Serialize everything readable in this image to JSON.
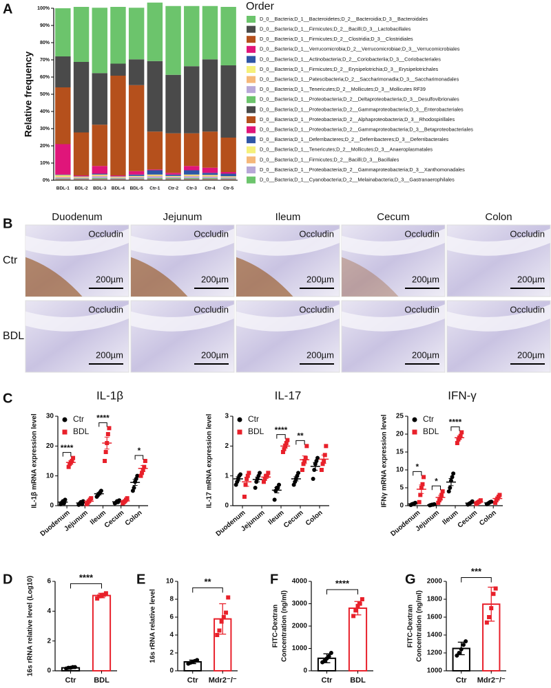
{
  "histology": {
    "panel": "B",
    "regions": [
      "Duodenum",
      "Jejunum",
      "Ileum",
      "Cecum",
      "Colon"
    ],
    "conditions": [
      "Ctr",
      "BDL"
    ],
    "stain": "Occludin",
    "scale_bar": "200µm"
  },
  "chart_data": [
    {
      "type": "stacked",
      "panel": "A",
      "ylabel": "Relative frequency",
      "legend_title": "Order",
      "categories": [
        "BDL-1",
        "BDL-2",
        "BDL-3",
        "BDL-4",
        "BDL-5",
        "Ctr-1",
        "Ctr-2",
        "Ctr-3",
        "Ctr-4",
        "Ctr-5"
      ],
      "ylim": [
        0,
        100
      ],
      "yticks": [
        {
          "value": 0,
          "label": "0%"
        },
        {
          "value": 10,
          "label": "10%"
        },
        {
          "value": 20,
          "label": "20%"
        },
        {
          "value": 30,
          "label": "30%"
        },
        {
          "value": 40,
          "label": "40%"
        },
        {
          "value": 50,
          "label": "50%"
        },
        {
          "value": 60,
          "label": "60%"
        },
        {
          "value": 70,
          "label": "70%"
        },
        {
          "value": 80,
          "label": "80%"
        },
        {
          "value": 90,
          "label": "90%"
        },
        {
          "value": 100,
          "label": "100%"
        }
      ],
      "series": [
        {
          "name": "D_0__Bacteria;D_1__Bacteroidetes;D_2__Bacteroidia;D_3__Bacteroidales",
          "color": "#6cc46c",
          "values": [
            28,
            32,
            38,
            33,
            30,
            34,
            40,
            35,
            31,
            34
          ]
        },
        {
          "name": "D_0__Bacteria;D_1__Firmicutes;D_2__Bacilli;D_3__Lactobacillales",
          "color": "#4a4a4a",
          "values": [
            18,
            41,
            30,
            7,
            15,
            41,
            34,
            39,
            42,
            42
          ]
        },
        {
          "name": "D_0__Bacteria;D_1__Firmicutes;D_2__Clostridia;D_3__Clostridiales",
          "color": "#b5501c",
          "values": [
            33,
            25,
            24,
            58,
            50,
            22,
            23,
            19,
            21,
            20
          ]
        },
        {
          "name": "D_0__Bacteria;D_1__Verrucomicrobia;D_2__Verrucomicrobiae;D_3__Verrucomicrobiales",
          "color": "#e0157a",
          "values": [
            17.7,
            0.5,
            4.5,
            0.5,
            2,
            0.5,
            1,
            2.5,
            3,
            1
          ]
        },
        {
          "name": "D_0__Bacteria;D_1__Actinobacteria;D_2__Coriobacteriia;D_3__Coriobacteriales",
          "color": "#2e56a6",
          "values": [
            0.3,
            0.2,
            0.5,
            0.2,
            0.8,
            2.5,
            0.8,
            2.5,
            1.2,
            1.5
          ]
        },
        {
          "name": "D_0__Bacteria;D_1__Firmicutes;D_2__Erysipelotrichia;D_3__Erysipelotrichales",
          "color": "#f5f07a",
          "values": [
            0.8,
            0.3,
            0.5,
            0.3,
            0.4,
            0.5,
            0.4,
            0.5,
            0.5,
            0.4
          ]
        },
        {
          "name": "D_0__Bacteria;D_1__Patescibacteria;D_2__Saccharimonadia;D_3__Saccharimonadales",
          "color": "#f5b87a",
          "values": [
            0.5,
            0.3,
            0.5,
            0.3,
            0.3,
            0.5,
            0.3,
            0.5,
            0.5,
            0.3
          ]
        },
        {
          "name": "D_0__Bacteria;D_1__Tenericutes;D_2__Mollicutes;D_3__Mollicutes RF39",
          "color": "#b8a8d8",
          "values": [
            0.6,
            0.4,
            1,
            0.4,
            0.7,
            1,
            0.6,
            1,
            0.8,
            0.5
          ]
        },
        {
          "name": "D_0__Bacteria;D_1__Proteobacteria;D_2__Deltaproteobacteria;D_3__Desulfovibrionales",
          "color": "#6cc46c",
          "values": [
            0.3,
            0.3,
            0.5,
            0.3,
            0.3,
            0.5,
            0.4,
            0.5,
            0.5,
            0.3
          ]
        },
        {
          "name": "D_0__Bacteria;D_1__Proteobacteria;D_2__Gammaproteobacteria;D_3__Enterobacteriales",
          "color": "#4a4a4a",
          "values": [
            0.1,
            0.1,
            0.1,
            0.1,
            0.1,
            0.1,
            0.1,
            0.1,
            0.1,
            0.1
          ]
        },
        {
          "name": "D_0__Bacteria;D_1__Proteobacteria;D_2__Alphaproteobacteria;D_3__Rhodospirillales",
          "color": "#b5501c",
          "values": [
            0.1,
            0.1,
            0.1,
            0.1,
            0.1,
            0.1,
            0.1,
            0.1,
            0.1,
            0.1
          ]
        },
        {
          "name": "D_0__Bacteria;D_1__Proteobacteria;D_2__Gammaproteobacteria;D_3__Betaproteobacteriales",
          "color": "#e0157a",
          "values": [
            0.1,
            0.1,
            0.1,
            0.1,
            0.1,
            0.1,
            0.1,
            0.1,
            0.1,
            0.1
          ]
        },
        {
          "name": "D_0__Bacteria;D_1__Deferribacteres;D_2__Deferribacteres;D_3__Deferribacterales",
          "color": "#2e56a6",
          "values": [
            0.1,
            0.1,
            0.1,
            0.1,
            0.1,
            0.1,
            0.1,
            0.1,
            0.1,
            0.1
          ]
        },
        {
          "name": "D_0__Bacteria;D_1__Tenericutes;D_2__Mollicutes;D_3__Anaeroplasmatales",
          "color": "#f5f07a",
          "values": [
            0.1,
            0.1,
            0.1,
            0.1,
            0.1,
            0.1,
            0.1,
            0.1,
            0.1,
            0.1
          ]
        },
        {
          "name": "D_0__Bacteria;D_1__Firmicutes;D_2__Bacilli;D_3__Bacillales",
          "color": "#f5b87a",
          "values": [
            0.1,
            0.1,
            0.1,
            0.1,
            0.1,
            0.1,
            0.1,
            0.1,
            0.1,
            0.1
          ]
        },
        {
          "name": "D_0__Bacteria;D_1__Proteobacteria;D_2__Gammaproteobacteria;D_3__Xanthomonadales",
          "color": "#b8a8d8",
          "values": [
            0.1,
            0.1,
            0.1,
            0.1,
            0.1,
            0.1,
            0.1,
            0.1,
            0.1,
            0.1
          ]
        },
        {
          "name": "D_0__Bacteria;D_1__Cyanobacteria;D_2__Melainabacteria;D_3__Gastranaerophilales",
          "color": "#6cc46c",
          "values": [
            0.1,
            0.1,
            0.1,
            0.1,
            0.1,
            0.1,
            0.1,
            0.1,
            0.1,
            0.1
          ]
        }
      ]
    },
    {
      "type": "dotplot",
      "panel": "C",
      "title": "IL-1β",
      "ylabel": "IL-1β mRNA expression level",
      "categories": [
        "Duodenum",
        "Jejunum",
        "Ileum",
        "Cecum",
        "Colon"
      ],
      "ylim": [
        0,
        30
      ],
      "yticks": [
        0,
        10,
        20,
        30
      ],
      "series": [
        {
          "name": "Ctr",
          "color": "#000000",
          "values": [
            [
              0.5,
              1,
              1.5,
              0.8,
              2
            ],
            [
              0.3,
              0.8,
              1.2,
              0.5,
              1.5
            ],
            [
              3,
              3.5,
              4,
              4.5,
              5
            ],
            [
              0.8,
              1,
              1.5,
              1.2,
              1.8
            ],
            [
              5,
              6,
              8,
              9,
              10
            ]
          ],
          "means": [
            1.2,
            0.9,
            4,
            1.3,
            7.8
          ],
          "errors": [
            0.3,
            0.3,
            0.4,
            0.2,
            1
          ]
        },
        {
          "name": "BDL",
          "color": "#e8202a",
          "values": [
            [
              13,
              14,
              14.5,
              15,
              16
            ],
            [
              0.5,
              1,
              1.5,
              2,
              2.5
            ],
            [
              15,
              18,
              21,
              24,
              26
            ],
            [
              0.8,
              1.2,
              1.5,
              2,
              2.5
            ],
            [
              10,
              11,
              12,
              13,
              15
            ]
          ],
          "means": [
            14.5,
            1.5,
            21,
            1.6,
            12.5
          ],
          "errors": [
            0.6,
            0.4,
            2,
            0.3,
            1
          ]
        }
      ],
      "significance": [
        {
          "category": "Duodenum",
          "label": "****"
        },
        {
          "category": "Ileum",
          "label": "****"
        },
        {
          "category": "Colon",
          "label": "*"
        }
      ]
    },
    {
      "type": "dotplot",
      "title": "IL-17",
      "ylabel": "IL-17 mRNA expression level",
      "categories": [
        "Duodenum",
        "Jejunum",
        "Ileum",
        "Cecum",
        "Colon"
      ],
      "ylim": [
        0,
        3
      ],
      "yticks": [
        0,
        1,
        2,
        3
      ],
      "series": [
        {
          "name": "Ctr",
          "color": "#000000",
          "values": [
            [
              0.7,
              0.8,
              0.9,
              1,
              1.05
            ],
            [
              0.6,
              0.8,
              0.9,
              1,
              1.1
            ],
            [
              0.2,
              0.5,
              0.6,
              0.6,
              0.7
            ],
            [
              0.7,
              0.8,
              0.9,
              1,
              1.1
            ],
            [
              0.9,
              1.2,
              1.4,
              1.5,
              1.6
            ]
          ],
          "means": [
            0.9,
            0.88,
            0.52,
            0.9,
            1.32
          ],
          "errors": [
            0.07,
            0.08,
            0.09,
            0.07,
            0.13
          ]
        },
        {
          "name": "BDL",
          "color": "#e8202a",
          "values": [
            [
              0.3,
              0.7,
              0.9,
              1,
              1.1
            ],
            [
              0.8,
              0.9,
              1,
              1,
              1.1
            ],
            [
              1.8,
              1.9,
              2,
              2.1,
              2.2
            ],
            [
              1.2,
              1.4,
              1.5,
              1.6,
              2
            ],
            [
              1.2,
              1.4,
              1.5,
              1.7,
              2
            ]
          ],
          "means": [
            0.8,
            0.96,
            2,
            1.54,
            1.56
          ],
          "errors": [
            0.15,
            0.05,
            0.07,
            0.13,
            0.14
          ]
        }
      ],
      "significance": [
        {
          "category": "Ileum",
          "label": "****"
        },
        {
          "category": "Cecum",
          "label": "**"
        }
      ]
    },
    {
      "type": "dotplot",
      "title": "IFN-γ",
      "ylabel": "IFNγ mRNA expression level",
      "categories": [
        "Duodenum",
        "Jejunum",
        "Ileum",
        "Cecum",
        "Colon"
      ],
      "ylim": [
        0,
        25
      ],
      "yticks": [
        0,
        5,
        10,
        15,
        20,
        25
      ],
      "series": [
        {
          "name": "Ctr",
          "color": "#000000",
          "values": [
            [
              0.2,
              0.4,
              0.5,
              0.6,
              0.8
            ],
            [
              0.1,
              0.2,
              0.3,
              0.3,
              0.4
            ],
            [
              4,
              5,
              7,
              8,
              9
            ],
            [
              0.3,
              0.5,
              0.7,
              0.9,
              1.2
            ],
            [
              0.4,
              0.6,
              0.8,
              1,
              1.1
            ]
          ],
          "means": [
            0.5,
            0.26,
            6.6,
            0.72,
            0.78
          ],
          "errors": [
            0.1,
            0.05,
            1,
            0.15,
            0.13
          ]
        },
        {
          "name": "BDL",
          "color": "#e8202a",
          "values": [
            [
              1,
              3,
              5,
              6,
              8
            ],
            [
              0.8,
              1.5,
              2,
              3,
              4
            ],
            [
              17.5,
              18.5,
              19,
              19.5,
              20.5
            ],
            [
              0.5,
              0.8,
              1,
              1.2,
              1.5
            ],
            [
              0.8,
              1.5,
              2,
              2.5,
              3
            ]
          ],
          "means": [
            4.6,
            2.3,
            19,
            1,
            2
          ],
          "errors": [
            1.2,
            0.6,
            0.5,
            0.17,
            0.4
          ]
        }
      ],
      "significance": [
        {
          "category": "Duodenum",
          "label": "*"
        },
        {
          "category": "Jejunum",
          "label": "*"
        },
        {
          "category": "Ileum",
          "label": "****"
        }
      ]
    },
    {
      "type": "bar",
      "panel": "D",
      "ylabel": [
        "16s rRNA  relative level (Log10)"
      ],
      "categories": [
        "Ctr",
        "BDL"
      ],
      "colors": [
        "#000000",
        "#e8202a"
      ],
      "values": [
        0.2,
        5.05
      ],
      "errors": [
        0.05,
        0.15
      ],
      "points": [
        [
          0.15,
          0.2,
          0.2,
          0.25,
          0.25
        ],
        [
          4.85,
          5,
          5.05,
          5.1,
          5.2
        ]
      ],
      "ylim": [
        0,
        6
      ],
      "yticks": [
        0,
        2,
        4,
        6
      ],
      "significance": "****"
    },
    {
      "type": "bar",
      "panel": "E",
      "ylabel": [
        "16s rRNA  relative level"
      ],
      "categories": [
        "Ctr",
        "Mdr2⁻/⁻"
      ],
      "colors": [
        "#000000",
        "#e8202a"
      ],
      "values": [
        1,
        5.8
      ],
      "errors": [
        0.2,
        1.7
      ],
      "points": [
        [
          0.8,
          0.9,
          1,
          1.1,
          1.2
        ],
        [
          4,
          4.5,
          5.5,
          6,
          6.5,
          8.2
        ]
      ],
      "ylim": [
        0,
        10
      ],
      "yticks": [
        0,
        2,
        4,
        6,
        8,
        10
      ],
      "significance": "**"
    },
    {
      "type": "bar",
      "panel": "F",
      "ylabel": [
        "FITC-Dextran",
        "Concentration (ng/ml)"
      ],
      "categories": [
        "Ctr",
        "BDL"
      ],
      "colors": [
        "#000000",
        "#e8202a"
      ],
      "values": [
        560,
        2800
      ],
      "errors": [
        200,
        300
      ],
      "points": [
        [
          380,
          450,
          550,
          650,
          800
        ],
        [
          2450,
          2700,
          2900,
          3000,
          3200
        ]
      ],
      "ylim": [
        0,
        4000
      ],
      "yticks": [
        0,
        1000,
        2000,
        3000,
        4000
      ],
      "significance": "****"
    },
    {
      "type": "bar",
      "panel": "G",
      "ylabel": [
        "FITC-Dextran",
        "Concentration (ng/ml)"
      ],
      "categories": [
        "Ctr",
        "Mdr2⁻/⁻"
      ],
      "colors": [
        "#000000",
        "#e8202a"
      ],
      "values": [
        1250,
        1745
      ],
      "errors": [
        70,
        190
      ],
      "points": [
        [
          1170,
          1200,
          1240,
          1290,
          1330
        ],
        [
          1540,
          1600,
          1700,
          1860,
          1920
        ]
      ],
      "ylim": [
        1000,
        2000
      ],
      "yticks": [
        1000,
        1200,
        1400,
        1600,
        1800,
        2000
      ],
      "significance": "***"
    }
  ]
}
